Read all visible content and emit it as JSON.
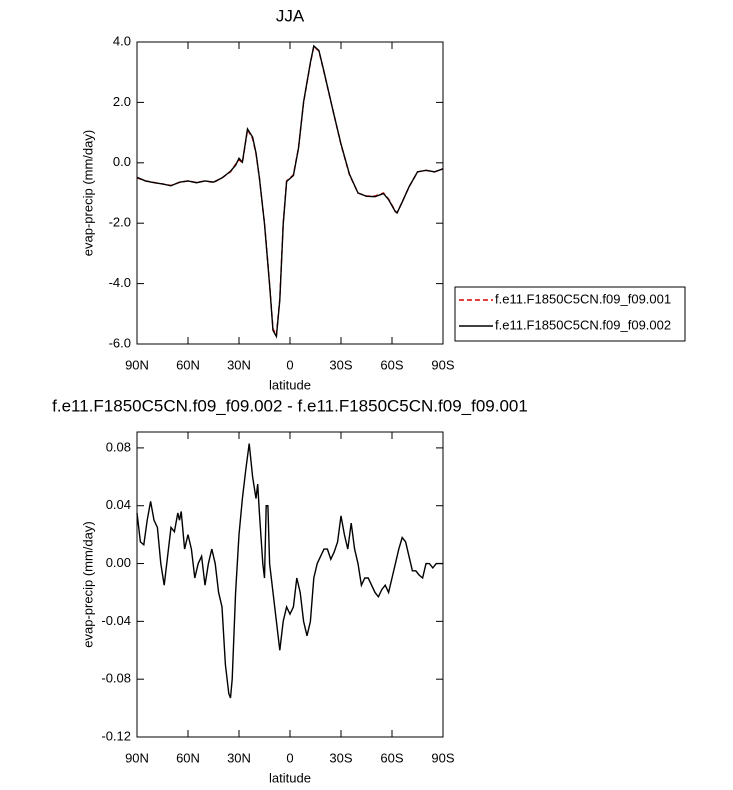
{
  "chart_data": [
    {
      "type": "line",
      "title": "JJA",
      "x_label": "latitude",
      "y_label": "evap-precip (mm/day)",
      "x": [
        90,
        85,
        80,
        75,
        70,
        65,
        60,
        55,
        50,
        45,
        40,
        35,
        32,
        30,
        28,
        25,
        22,
        20,
        18,
        15,
        12,
        10,
        8,
        6,
        4,
        2,
        0,
        -2,
        -5,
        -8,
        -12,
        -14,
        -17,
        -20,
        -25,
        -30,
        -35,
        -40,
        -45,
        -50,
        -55,
        -58,
        -62,
        -63,
        -66,
        -70,
        -75,
        -80,
        -85,
        -90
      ],
      "xlim": [
        90,
        -90
      ],
      "xticks": [
        {
          "value": 90,
          "label": "90N"
        },
        {
          "value": 60,
          "label": "60N"
        },
        {
          "value": 30,
          "label": "30N"
        },
        0,
        {
          "value": -30,
          "label": "30S"
        },
        {
          "value": -60,
          "label": "60S"
        },
        {
          "value": -90,
          "label": "90S"
        }
      ],
      "ylim": [
        -6,
        4
      ],
      "yticks": [
        {
          "value": 4,
          "label": "4.0"
        },
        {
          "value": 2,
          "label": "2.0"
        },
        {
          "value": 0,
          "label": "0.0"
        },
        {
          "value": -2,
          "label": "-2.0"
        },
        {
          "value": -4,
          "label": "-4.0"
        },
        {
          "value": -6,
          "label": "-6.0"
        }
      ],
      "legend": "right",
      "series": [
        {
          "name": "f.e11.F1850C5CN.f09_f09.001",
          "color": "#e00000",
          "line_style": "dashed",
          "values": [
            -0.5,
            -0.6,
            -0.65,
            -0.7,
            -0.75,
            -0.65,
            -0.6,
            -0.65,
            -0.6,
            -0.65,
            -0.5,
            -0.3,
            -0.05,
            0.1,
            0.0,
            1.1,
            0.8,
            0.3,
            -0.5,
            -2.0,
            -4.0,
            -5.5,
            -5.7,
            -4.5,
            -2.0,
            -0.6,
            -0.5,
            -0.4,
            0.5,
            2.0,
            3.3,
            3.85,
            3.7,
            3.0,
            1.8,
            0.6,
            -0.4,
            -1.0,
            -1.1,
            -1.1,
            -1.0,
            -1.2,
            -1.6,
            -1.65,
            -1.3,
            -0.8,
            -0.3,
            -0.25,
            -0.3,
            -0.2
          ]
        },
        {
          "name": "f.e11.F1850C5CN.f09_f09.002",
          "color": "#000000",
          "line_style": "solid",
          "values": [
            -0.48,
            -0.6,
            -0.66,
            -0.7,
            -0.76,
            -0.64,
            -0.6,
            -0.66,
            -0.6,
            -0.64,
            -0.5,
            -0.28,
            -0.08,
            0.15,
            0.02,
            1.12,
            0.85,
            0.33,
            -0.5,
            -2.02,
            -4.05,
            -5.55,
            -5.75,
            -4.55,
            -2.05,
            -0.62,
            -0.52,
            -0.42,
            0.48,
            2.02,
            3.32,
            3.87,
            3.72,
            3.02,
            1.8,
            0.62,
            -0.38,
            -1.0,
            -1.11,
            -1.12,
            -1.02,
            -1.22,
            -1.62,
            -1.66,
            -1.3,
            -0.8,
            -0.3,
            -0.25,
            -0.3,
            -0.2
          ]
        }
      ]
    },
    {
      "type": "line",
      "title": "f.e11.F1850C5CN.f09_f09.002 - f.e11.F1850C5CN.f09_f09.001",
      "x_label": "latitude",
      "y_label": "evap-precip (mm/day)",
      "x": [
        90,
        88,
        86,
        84,
        82,
        80,
        78,
        76,
        74,
        72,
        70,
        68,
        66,
        65,
        64,
        62,
        60,
        58,
        56,
        54,
        52,
        50,
        48,
        46,
        44,
        42,
        40,
        38,
        36,
        35,
        34,
        32,
        30,
        28,
        26,
        24,
        22,
        20,
        19,
        18,
        16,
        15,
        14,
        13,
        12,
        10,
        8,
        6,
        4,
        2,
        0,
        -2,
        -4,
        -6,
        -8,
        -10,
        -12,
        -14,
        -16,
        -18,
        -20,
        -22,
        -24,
        -26,
        -28,
        -30,
        -32,
        -34,
        -36,
        -38,
        -40,
        -42,
        -44,
        -46,
        -48,
        -50,
        -52,
        -54,
        -56,
        -58,
        -60,
        -62,
        -64,
        -66,
        -68,
        -70,
        -72,
        -74,
        -76,
        -78,
        -80,
        -82,
        -84,
        -86,
        -88,
        -90
      ],
      "xlim": [
        90,
        -90
      ],
      "xticks": [
        {
          "value": 90,
          "label": "90N"
        },
        {
          "value": 60,
          "label": "60N"
        },
        {
          "value": 30,
          "label": "30N"
        },
        0,
        {
          "value": -30,
          "label": "30S"
        },
        {
          "value": -60,
          "label": "60S"
        },
        {
          "value": -90,
          "label": "90S"
        }
      ],
      "ylim": [
        -0.12,
        0.091
      ],
      "yticks": [
        0.08,
        0.04,
        {
          "value": 0,
          "label": "0.00"
        },
        -0.04,
        -0.08,
        -0.12
      ],
      "series": [
        {
          "color": "#000000",
          "line_style": "solid",
          "values": [
            0.035,
            0.015,
            0.013,
            0.03,
            0.043,
            0.03,
            0.025,
            0.0,
            -0.015,
            0.005,
            0.025,
            0.022,
            0.035,
            0.03,
            0.036,
            0.01,
            0.02,
            0.01,
            -0.01,
            0.0,
            0.005,
            -0.015,
            0.0,
            0.01,
            0.0,
            -0.02,
            -0.03,
            -0.07,
            -0.09,
            -0.093,
            -0.08,
            -0.02,
            0.02,
            0.045,
            0.065,
            0.083,
            0.06,
            0.045,
            0.055,
            0.035,
            0.0,
            -0.01,
            0.04,
            0.04,
            0.0,
            -0.02,
            -0.04,
            -0.06,
            -0.04,
            -0.03,
            -0.035,
            -0.03,
            -0.01,
            -0.02,
            -0.04,
            -0.05,
            -0.04,
            -0.01,
            0.0,
            0.005,
            0.01,
            0.01,
            0.003,
            0.008,
            0.015,
            0.033,
            0.02,
            0.01,
            0.028,
            0.01,
            0.0,
            -0.015,
            -0.01,
            -0.01,
            -0.015,
            -0.02,
            -0.023,
            -0.018,
            -0.015,
            -0.02,
            -0.01,
            0.0,
            0.01,
            0.018,
            0.015,
            0.005,
            -0.005,
            -0.005,
            -0.008,
            -0.01,
            0.0,
            0.0,
            -0.003,
            0.0,
            0.0,
            0.0
          ]
        }
      ]
    }
  ]
}
